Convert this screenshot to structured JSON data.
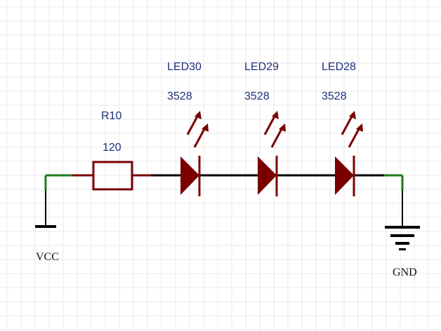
{
  "colors": {
    "background": "#ffffff",
    "grid": "#e8e8e8",
    "component": "#7a0000",
    "wire": "#000000",
    "pin": "#1e7a1e",
    "designator_text": "#1f2f7a",
    "power_text": "#111111"
  },
  "resistor": {
    "designator": "R10",
    "value": "120"
  },
  "leds": [
    {
      "designator": "LED30",
      "value": "3528"
    },
    {
      "designator": "LED29",
      "value": "3528"
    },
    {
      "designator": "LED28",
      "value": "3528"
    }
  ],
  "power": {
    "vcc_label": "VCC",
    "gnd_label": "GND"
  },
  "icons": {
    "vcc": "vcc-bar-symbol",
    "gnd": "ground-symbol",
    "led": "led-diode-symbol",
    "resistor": "resistor-symbol"
  }
}
